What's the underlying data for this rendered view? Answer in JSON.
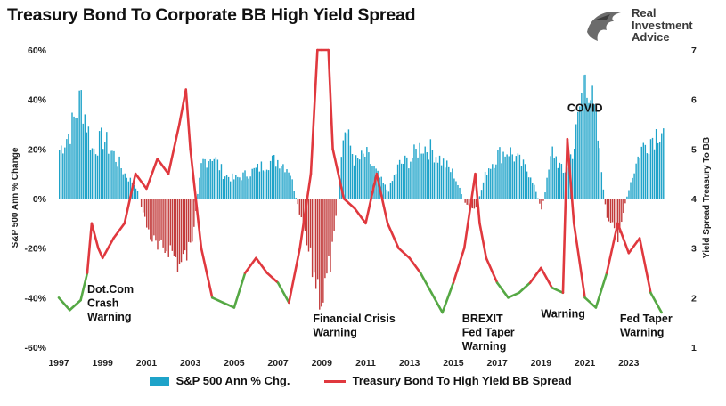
{
  "title": "Treasury Bond To Corporate BB High Yield Spread",
  "logo": {
    "line1": "Real",
    "line2": "Investment",
    "line3": "Advice"
  },
  "colors": {
    "bars": "#1ea3c9",
    "spread_red": "#e0383e",
    "spread_green": "#55a844",
    "annotation": "#111111"
  },
  "chart_data": {
    "type": "bar+line",
    "title": "Treasury Bond To Corporate BB High Yield Spread",
    "x_ticks": [
      "1997",
      "1999",
      "2001",
      "2003",
      "2005",
      "2007",
      "2009",
      "2011",
      "2013",
      "2015",
      "2017",
      "2019",
      "2021",
      "2023"
    ],
    "x_range": [
      1997,
      2025
    ],
    "y_left": {
      "label": "S&P 500 Ann % Change",
      "range": [
        -60,
        60
      ],
      "ticks": [
        "60%",
        "40%",
        "20%",
        "0%",
        "-20%",
        "-40%",
        "-60%"
      ]
    },
    "y_right": {
      "label": "Yield Spread Treasury To BB",
      "range": [
        1,
        7
      ],
      "ticks": [
        "7",
        "6",
        "5",
        "4",
        "3",
        "2",
        "1"
      ]
    },
    "legend": [
      "S&P 500 Ann % Chg.",
      "Treasury Bond To High Yield BB Spread"
    ],
    "series": [
      {
        "name": "S&P 500 Ann % Chg.",
        "type": "bar",
        "axis": "left",
        "points": [
          [
            1997,
            20
          ],
          [
            1997.5,
            28
          ],
          [
            1998,
            42
          ],
          [
            1998.5,
            20
          ],
          [
            1999,
            25
          ],
          [
            1999.5,
            18
          ],
          [
            2000,
            10
          ],
          [
            2000.5,
            5
          ],
          [
            2001,
            -12
          ],
          [
            2001.5,
            -22
          ],
          [
            2002,
            -20
          ],
          [
            2002.5,
            -28
          ],
          [
            2003,
            -20
          ],
          [
            2003.5,
            15
          ],
          [
            2004,
            18
          ],
          [
            2004.5,
            10
          ],
          [
            2005,
            8
          ],
          [
            2005.5,
            10
          ],
          [
            2006,
            12
          ],
          [
            2006.5,
            15
          ],
          [
            2007,
            16
          ],
          [
            2007.5,
            12
          ],
          [
            2008,
            -8
          ],
          [
            2008.5,
            -28
          ],
          [
            2009,
            -42
          ],
          [
            2009.5,
            -20
          ],
          [
            2010,
            30
          ],
          [
            2010.5,
            15
          ],
          [
            2011,
            18
          ],
          [
            2011.5,
            10
          ],
          [
            2012,
            3
          ],
          [
            2012.5,
            14
          ],
          [
            2013,
            16
          ],
          [
            2013.5,
            22
          ],
          [
            2014,
            20
          ],
          [
            2014.5,
            15
          ],
          [
            2015,
            10
          ],
          [
            2015.5,
            -2
          ],
          [
            2016,
            -5
          ],
          [
            2016.5,
            12
          ],
          [
            2017,
            18
          ],
          [
            2017.5,
            20
          ],
          [
            2018,
            15
          ],
          [
            2018.5,
            10
          ],
          [
            2019,
            -5
          ],
          [
            2019.5,
            20
          ],
          [
            2020,
            10
          ],
          [
            2020.5,
            22
          ],
          [
            2021,
            55
          ],
          [
            2021.5,
            30
          ],
          [
            2022,
            -10
          ],
          [
            2022.5,
            -15
          ],
          [
            2023,
            5
          ],
          [
            2023.5,
            20
          ],
          [
            2024,
            25
          ],
          [
            2024.5,
            30
          ]
        ]
      },
      {
        "name": "Treasury Bond To High Yield BB Spread",
        "type": "line",
        "axis": "right",
        "points": [
          [
            1997,
            2.0
          ],
          [
            1997.5,
            1.75
          ],
          [
            1998,
            1.95
          ],
          [
            1998.3,
            2.5
          ],
          [
            1998.5,
            3.5
          ],
          [
            1998.8,
            3.0
          ],
          [
            1999,
            2.8
          ],
          [
            1999.5,
            3.2
          ],
          [
            2000,
            3.5
          ],
          [
            2000.5,
            4.5
          ],
          [
            2001,
            4.2
          ],
          [
            2001.5,
            4.8
          ],
          [
            2002,
            4.5
          ],
          [
            2002.5,
            5.5
          ],
          [
            2002.8,
            6.2
          ],
          [
            2003,
            5.0
          ],
          [
            2003.5,
            3.0
          ],
          [
            2004,
            2.0
          ],
          [
            2004.5,
            1.9
          ],
          [
            2005,
            1.8
          ],
          [
            2005.5,
            2.5
          ],
          [
            2006,
            2.8
          ],
          [
            2006.5,
            2.5
          ],
          [
            2007,
            2.3
          ],
          [
            2007.5,
            1.9
          ],
          [
            2008,
            3.0
          ],
          [
            2008.5,
            4.5
          ],
          [
            2008.8,
            7.0
          ],
          [
            2009,
            7.0
          ],
          [
            2009.3,
            7.0
          ],
          [
            2009.5,
            5.0
          ],
          [
            2010,
            4.0
          ],
          [
            2010.5,
            3.8
          ],
          [
            2011,
            3.5
          ],
          [
            2011.5,
            4.5
          ],
          [
            2012,
            3.5
          ],
          [
            2012.5,
            3.0
          ],
          [
            2013,
            2.8
          ],
          [
            2013.5,
            2.5
          ],
          [
            2014,
            2.1
          ],
          [
            2014.5,
            1.7
          ],
          [
            2015,
            2.3
          ],
          [
            2015.5,
            3.0
          ],
          [
            2016,
            4.5
          ],
          [
            2016.2,
            3.5
          ],
          [
            2016.5,
            2.8
          ],
          [
            2017,
            2.3
          ],
          [
            2017.5,
            2.0
          ],
          [
            2018,
            2.1
          ],
          [
            2018.5,
            2.3
          ],
          [
            2019,
            2.6
          ],
          [
            2019.5,
            2.2
          ],
          [
            2020,
            2.1
          ],
          [
            2020.2,
            5.2
          ],
          [
            2020.5,
            3.5
          ],
          [
            2021,
            2.0
          ],
          [
            2021.5,
            1.8
          ],
          [
            2022,
            2.5
          ],
          [
            2022.5,
            3.5
          ],
          [
            2023,
            2.9
          ],
          [
            2023.5,
            3.2
          ],
          [
            2024,
            2.1
          ],
          [
            2024.5,
            1.7
          ]
        ]
      }
    ],
    "annotations": [
      {
        "lines": [
          "Dot.Com",
          "Crash",
          "Warning"
        ],
        "x": 1998.3,
        "y_left": -38
      },
      {
        "lines": [
          "Financial Crisis",
          "Warning"
        ],
        "x": 2008.6,
        "y_left": -50
      },
      {
        "lines": [
          "BREXIT",
          "Fed Taper",
          "Warning"
        ],
        "x": 2015.4,
        "y_left": -50
      },
      {
        "lines": [
          "Warning"
        ],
        "x": 2019.0,
        "y_left": -48
      },
      {
        "lines": [
          "COVID"
        ],
        "x": 2020.2,
        "y_left": 35
      },
      {
        "lines": [
          "Fed Taper",
          "Warning"
        ],
        "x": 2022.6,
        "y_left": -50
      }
    ]
  }
}
